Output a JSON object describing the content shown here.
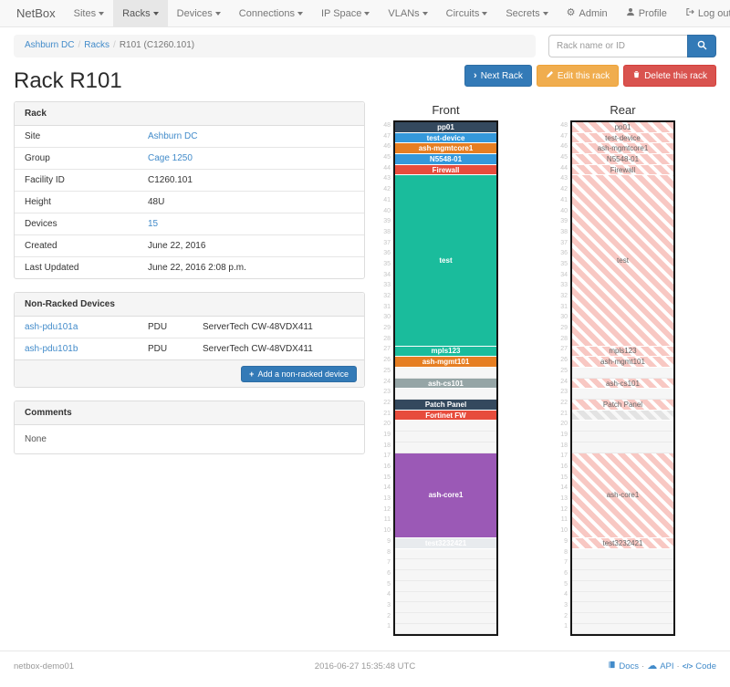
{
  "navbar": {
    "brand": "NetBox",
    "items": [
      {
        "label": "Sites",
        "active": false
      },
      {
        "label": "Racks",
        "active": true
      },
      {
        "label": "Devices",
        "active": false
      },
      {
        "label": "Connections",
        "active": false
      },
      {
        "label": "IP Space",
        "active": false
      },
      {
        "label": "VLANs",
        "active": false
      },
      {
        "label": "Circuits",
        "active": false
      },
      {
        "label": "Secrets",
        "active": false
      }
    ],
    "right_items": [
      {
        "icon": "gear-icon",
        "label": "Admin"
      },
      {
        "icon": "user-icon",
        "label": "Profile"
      },
      {
        "icon": "logout-icon",
        "label": "Log out"
      }
    ]
  },
  "breadcrumb": {
    "items": [
      {
        "label": "Ashburn DC",
        "link": true
      },
      {
        "label": "Racks",
        "link": true
      },
      {
        "label": "R101 (C1260.101)",
        "link": false
      }
    ]
  },
  "search": {
    "placeholder": "Rack name or ID"
  },
  "page": {
    "title": "Rack R101"
  },
  "actions": [
    {
      "label": "Next Rack",
      "color": "#337ab7",
      "border": "#2e6da4",
      "icon": "chevron-right-icon",
      "name": "next-rack-button"
    },
    {
      "label": "Edit this rack",
      "color": "#f0ad4e",
      "border": "#eea236",
      "icon": "pencil-icon",
      "name": "edit-rack-button"
    },
    {
      "label": "Delete this rack",
      "color": "#d9534f",
      "border": "#d43f3a",
      "icon": "trash-icon",
      "name": "delete-rack-button"
    }
  ],
  "rack_panel": {
    "header": "Rack",
    "rows": [
      {
        "label": "Site",
        "value": "Ashburn DC",
        "link": true
      },
      {
        "label": "Group",
        "value": "Cage 1250",
        "link": true
      },
      {
        "label": "Facility ID",
        "value": "C1260.101",
        "link": false
      },
      {
        "label": "Height",
        "value": "48U",
        "link": false
      },
      {
        "label": "Devices",
        "value": "15",
        "link": true
      },
      {
        "label": "Created",
        "value": "June 22, 2016",
        "link": false
      },
      {
        "label": "Last Updated",
        "value": "June 22, 2016 2:08 p.m.",
        "link": false
      }
    ]
  },
  "nonracked_panel": {
    "header": "Non-Racked Devices",
    "rows": [
      {
        "name": "ash-pdu101a",
        "role": "PDU",
        "model": "ServerTech CW-48VDX411"
      },
      {
        "name": "ash-pdu101b",
        "role": "PDU",
        "model": "ServerTech CW-48VDX411"
      }
    ],
    "add_button": "Add a non-racked device"
  },
  "comments_panel": {
    "header": "Comments",
    "body": "None"
  },
  "elevations": {
    "front_title": "Front",
    "rear_title": "Rear",
    "units_total": 48,
    "hatch_color": "#f8c8c3",
    "blocks": [
      {
        "top_unit": 48,
        "span": 1,
        "label": "pp01",
        "color": "#34495e"
      },
      {
        "top_unit": 47,
        "span": 1,
        "label": "test-device",
        "color": "#3498db"
      },
      {
        "top_unit": 46,
        "span": 1,
        "label": "ash-mgmtcore1",
        "color": "#e67e22"
      },
      {
        "top_unit": 45,
        "span": 1,
        "label": "N5548-01",
        "color": "#3498db"
      },
      {
        "top_unit": 44,
        "span": 1,
        "label": "Firewall",
        "color": "#e74c3c"
      },
      {
        "top_unit": 43,
        "span": 16,
        "label": "test",
        "color": "#1abc9c"
      },
      {
        "top_unit": 27,
        "span": 1,
        "label": "mpls123",
        "color": "#1abc9c"
      },
      {
        "top_unit": 26,
        "span": 1,
        "label": "ash-mgmt101",
        "color": "#e67e22"
      },
      {
        "top_unit": 24,
        "span": 1,
        "label": "ash-cs101",
        "color": "#95a5a6"
      },
      {
        "top_unit": 22,
        "span": 1,
        "label": "Patch Panel",
        "color": "#34495e"
      },
      {
        "top_unit": 21,
        "span": 1,
        "label": "Fortinet FW",
        "color": "#e74c3c",
        "rear_label_hidden": true
      },
      {
        "top_unit": 17,
        "span": 8,
        "label": "ash-core1",
        "color": "#9b59b6"
      },
      {
        "top_unit": 9,
        "span": 1,
        "label": "test3232421",
        "color": "#e8ebee",
        "label_color": "#ffffff"
      }
    ]
  },
  "footer": {
    "hostname": "netbox-demo01",
    "timestamp": "2016-06-27 15:35:48 UTC",
    "links": [
      {
        "icon": "book-icon",
        "label": "Docs"
      },
      {
        "icon": "cloud-icon",
        "label": "API"
      },
      {
        "icon": "code-icon",
        "label": "Code"
      }
    ]
  }
}
